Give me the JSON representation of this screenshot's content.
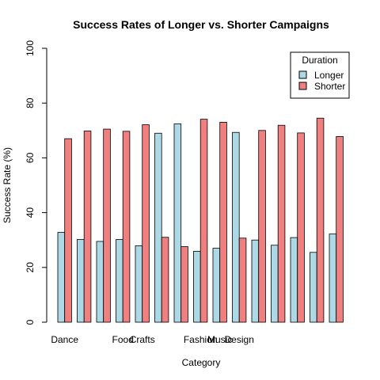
{
  "chart_data": {
    "type": "bar",
    "title": "Success Rates of Longer vs. Shorter Campaigns",
    "xlabel": "Category",
    "ylabel": "Success Rate (%)",
    "ylim": [
      0,
      100
    ],
    "yticks": [
      0,
      20,
      40,
      60,
      80,
      100
    ],
    "grid": false,
    "legend": {
      "title": "Duration",
      "placement": "top-right",
      "entries": [
        "Longer",
        "Shorter"
      ]
    },
    "categories": [
      "Dance",
      "",
      "",
      "Food",
      "Crafts",
      "",
      "",
      "Fashion",
      "Music",
      "Design",
      "",
      "",
      "",
      "",
      ""
    ],
    "series": [
      {
        "name": "Longer",
        "color": "#ADD8E6",
        "values": [
          32.8,
          30.2,
          29.5,
          30.2,
          27.9,
          69.0,
          72.4,
          25.9,
          27.0,
          69.3,
          30.0,
          28.1,
          30.9,
          25.5,
          32.2
        ]
      },
      {
        "name": "Shorter",
        "color": "#F08080",
        "values": [
          67.0,
          69.8,
          70.5,
          69.7,
          72.1,
          31.0,
          27.6,
          74.1,
          73.0,
          30.7,
          70.0,
          71.9,
          69.1,
          74.5,
          67.8
        ]
      }
    ]
  }
}
